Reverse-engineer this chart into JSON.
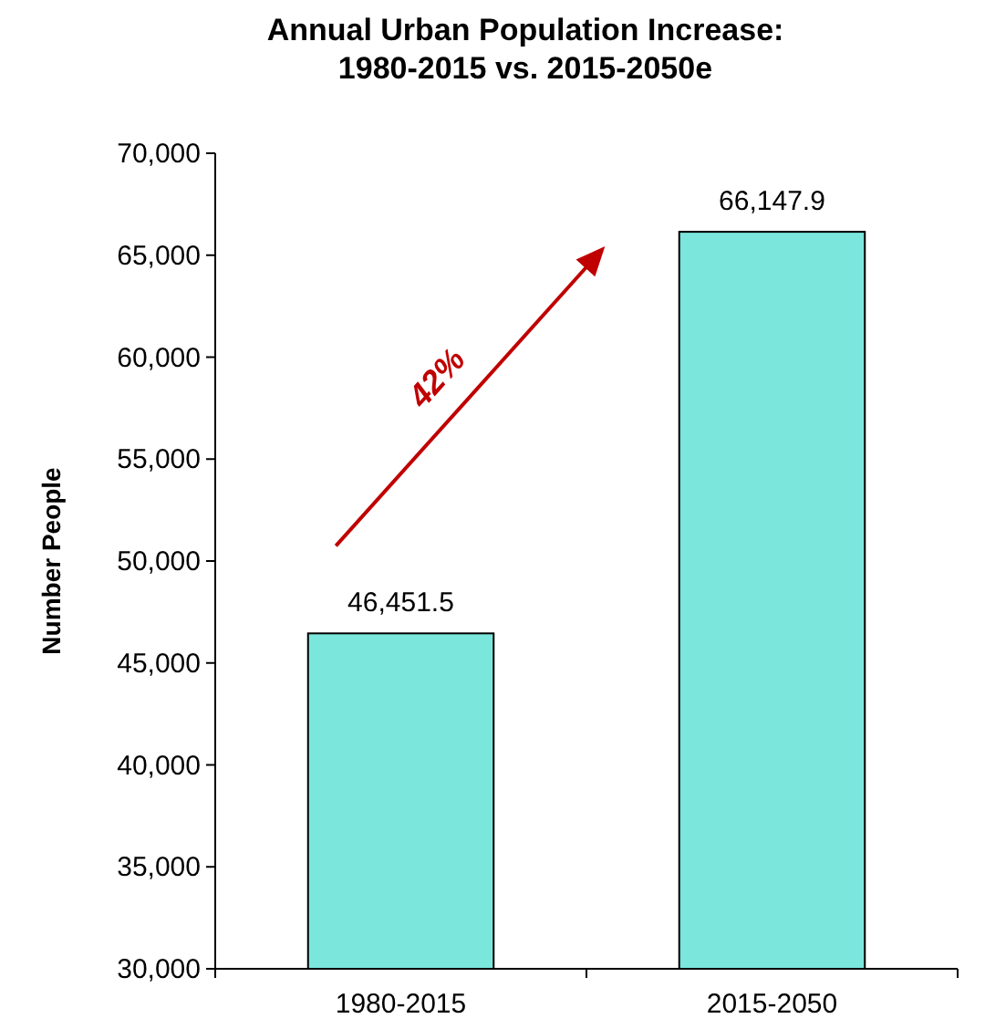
{
  "chart_data": {
    "type": "bar",
    "title": "Annual Urban Population Increase:\n1980-2015 vs. 2015-2050e",
    "ylabel": "Number People",
    "categories": [
      "1980-2015",
      "2015-2050"
    ],
    "values": [
      46451.5,
      66147.9
    ],
    "color": "#7ae6dc",
    "value_labels": [
      "46,451.5",
      "66,147.9"
    ],
    "ylim": [
      30000,
      70000
    ],
    "yticks": [
      {
        "value": 30000,
        "label": "30,000"
      },
      {
        "value": 35000,
        "label": "35,000"
      },
      {
        "value": 40000,
        "label": "40,000"
      },
      {
        "value": 45000,
        "label": "45,000"
      },
      {
        "value": 50000,
        "label": "50,000"
      },
      {
        "value": 55000,
        "label": "55,000"
      },
      {
        "value": 60000,
        "label": "60,000"
      },
      {
        "value": 65000,
        "label": "65,000"
      },
      {
        "value": 70000,
        "label": "70,000"
      }
    ],
    "grid": false,
    "annotations": [
      "42%"
    ]
  }
}
